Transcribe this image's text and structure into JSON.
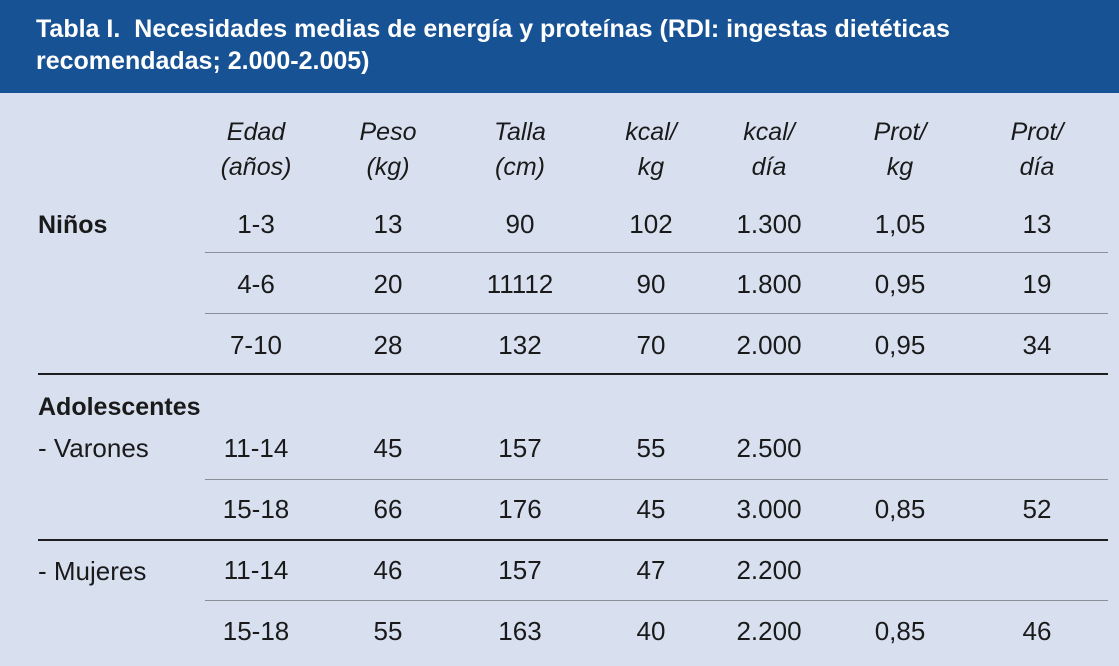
{
  "title": {
    "label": "Tabla I.",
    "text_line1": "Necesidades medias de energía y proteínas (RDI: ingestas dietéticas",
    "text_line2": "recomendadas; 2.000-2.005)"
  },
  "columns": [
    {
      "line1": "Edad",
      "line2": "(años)"
    },
    {
      "line1": "Peso",
      "line2": "(kg)"
    },
    {
      "line1": "Talla",
      "line2": "(cm)"
    },
    {
      "line1": "kcal/",
      "line2": "kg"
    },
    {
      "line1": "kcal/",
      "line2": "día"
    },
    {
      "line1": "Prot/",
      "line2": "kg"
    },
    {
      "line1": "Prot/",
      "line2": "día"
    }
  ],
  "groups": {
    "ninos": "Niños",
    "adolescentes": "Adolescentes",
    "varones": "-  Varones",
    "mujeres": "-  Mujeres"
  },
  "rows": [
    {
      "cells": [
        "1-3",
        "13",
        "90",
        "102",
        "1.300",
        "1,05",
        "13"
      ]
    },
    {
      "cells": [
        "4-6",
        "20",
        "11112",
        "90",
        "1.800",
        "0,95",
        "19"
      ]
    },
    {
      "cells": [
        "7-10",
        "28",
        "132",
        "70",
        "2.000",
        "0,95",
        "34"
      ]
    },
    {
      "cells": [
        "11-14",
        "45",
        "157",
        "55",
        "2.500",
        "",
        ""
      ]
    },
    {
      "cells": [
        "15-18",
        "66",
        "176",
        "45",
        "3.000",
        "0,85",
        "52"
      ]
    },
    {
      "cells": [
        "11-14",
        "46",
        "157",
        "47",
        "2.200",
        "",
        ""
      ]
    },
    {
      "cells": [
        "15-18",
        "55",
        "163",
        "40",
        "2.200",
        "0,85",
        "46"
      ]
    }
  ],
  "colors": {
    "header_bg": "#175294",
    "table_bg": "#d8e0f0"
  }
}
